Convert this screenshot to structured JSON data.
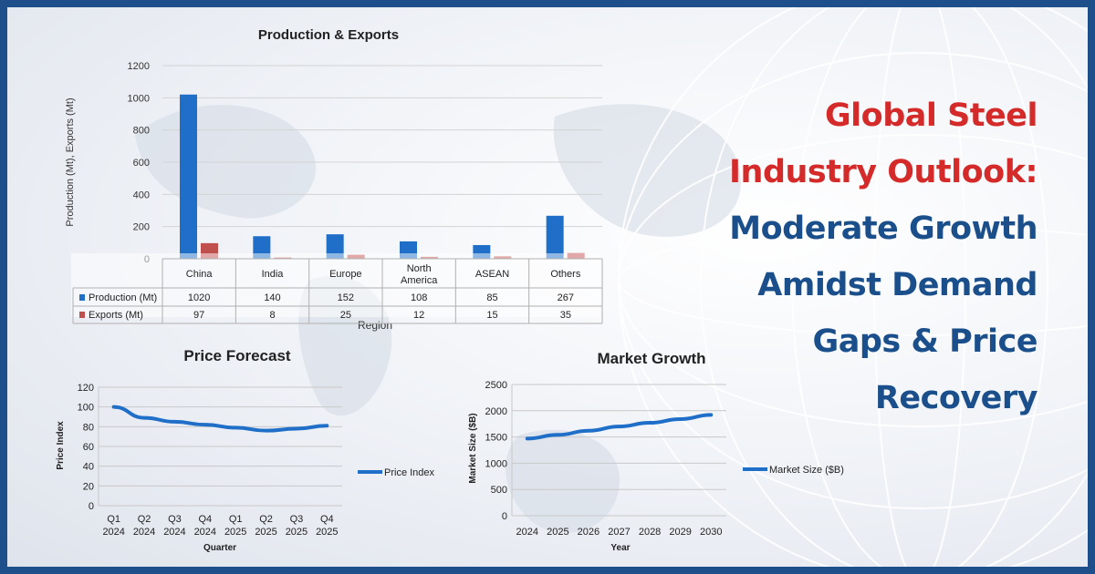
{
  "headline": {
    "lines": [
      {
        "text": "Global Steel",
        "color": "#d42a2a"
      },
      {
        "text": "Industry Outlook:",
        "color": "#d42a2a"
      },
      {
        "text": "Moderate Growth",
        "color": "#1a4f8b"
      },
      {
        "text": "Amidst Demand",
        "color": "#1a4f8b"
      },
      {
        "text": "Gaps & Price",
        "color": "#1a4f8b"
      },
      {
        "text": "Recovery",
        "color": "#1a4f8b"
      }
    ]
  },
  "colors": {
    "frame": "#1f4f8b",
    "production": "#1f6fc8",
    "exports": "#c0504d",
    "line": "#1f6fc8"
  },
  "chart_data": [
    {
      "type": "bar",
      "title": "Production & Exports",
      "xlabel": "Region",
      "ylabel": "Production (Mt), Exports (Mt)",
      "ylim": [
        0,
        1200
      ],
      "yticks": [
        0,
        200,
        400,
        600,
        800,
        1000,
        1200
      ],
      "categories": [
        "China",
        "India",
        "Europe",
        "North America",
        "ASEAN",
        "Others"
      ],
      "series": [
        {
          "name": "Production (Mt)",
          "values": [
            1020,
            140,
            152,
            108,
            85,
            267
          ]
        },
        {
          "name": "Exports (Mt)",
          "values": [
            97,
            8,
            25,
            12,
            15,
            35
          ]
        }
      ],
      "data_table": true
    },
    {
      "type": "line",
      "title": "Price Forecast",
      "xlabel": "Quarter",
      "ylabel": "Price Index",
      "ylim": [
        0,
        120
      ],
      "yticks": [
        0,
        20,
        40,
        60,
        80,
        100,
        120
      ],
      "categories": [
        [
          "Q1",
          "2024"
        ],
        [
          "Q2",
          "2024"
        ],
        [
          "Q3",
          "2024"
        ],
        [
          "Q4",
          "2024"
        ],
        [
          "Q1",
          "2025"
        ],
        [
          "Q2",
          "2025"
        ],
        [
          "Q3",
          "2025"
        ],
        [
          "Q4",
          "2025"
        ]
      ],
      "series": [
        {
          "name": "Price Index",
          "values": [
            100,
            89,
            85,
            82,
            79,
            76,
            78,
            81
          ]
        }
      ],
      "legend": "right"
    },
    {
      "type": "line",
      "title": "Market Growth",
      "xlabel": "Year",
      "ylabel": "Market Size ($B)",
      "ylim": [
        0,
        2500
      ],
      "yticks": [
        0,
        500,
        1000,
        1500,
        2000,
        2500
      ],
      "categories": [
        "2024",
        "2025",
        "2026",
        "2027",
        "2028",
        "2029",
        "2030"
      ],
      "series": [
        {
          "name": "Market Size ($B)",
          "values": [
            1470,
            1540,
            1620,
            1700,
            1770,
            1840,
            1920
          ]
        }
      ],
      "legend": "right"
    }
  ]
}
